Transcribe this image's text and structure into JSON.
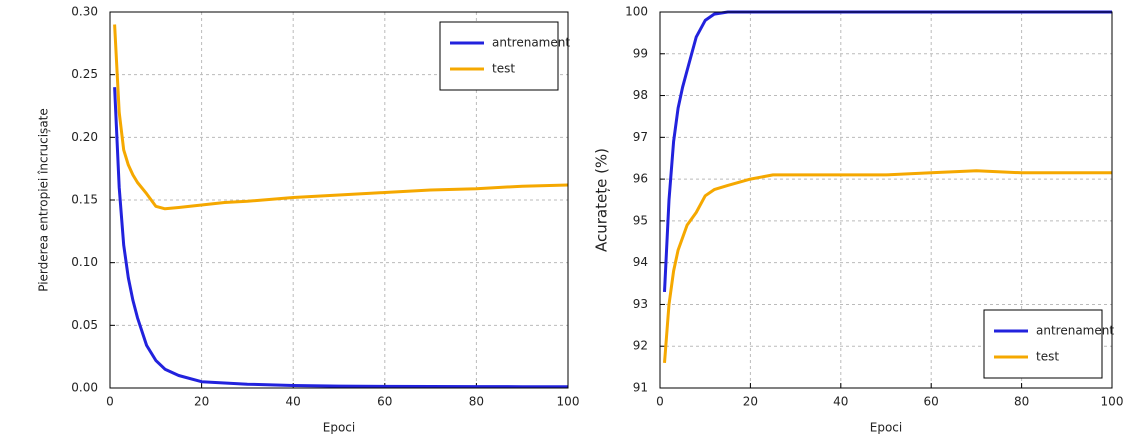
{
  "chart_data": [
    {
      "type": "line",
      "x_label": "Epoci",
      "y_label": "Pierderea entropiei încrucișate",
      "x": [
        1,
        2,
        3,
        4,
        5,
        6,
        8,
        10,
        12,
        15,
        20,
        25,
        30,
        40,
        50,
        60,
        70,
        80,
        90,
        100
      ],
      "series": [
        {
          "name": "antrenament",
          "color": "#2222dd",
          "values": [
            0.24,
            0.16,
            0.114,
            0.088,
            0.07,
            0.056,
            0.034,
            0.022,
            0.015,
            0.01,
            0.005,
            0.004,
            0.003,
            0.002,
            0.0015,
            0.0013,
            0.0012,
            0.0011,
            0.001,
            0.001
          ]
        },
        {
          "name": "test",
          "color": "#f5a800",
          "values": [
            0.29,
            0.22,
            0.19,
            0.178,
            0.17,
            0.164,
            0.155,
            0.145,
            0.143,
            0.144,
            0.146,
            0.148,
            0.149,
            0.152,
            0.154,
            0.156,
            0.158,
            0.159,
            0.161,
            0.162
          ]
        }
      ],
      "xlim": [
        0,
        100
      ],
      "xticks": [
        0,
        20,
        40,
        60,
        80,
        100
      ],
      "ylim": [
        0,
        0.3
      ],
      "yticks": [
        {
          "value": 0,
          "label": "0.00"
        },
        0.05,
        {
          "value": 0.1,
          "label": "0.10"
        },
        0.15,
        {
          "value": 0.2,
          "label": "0.20"
        },
        0.25,
        {
          "value": 0.3,
          "label": "0.30"
        }
      ],
      "grid": true,
      "legend": "upper right"
    },
    {
      "type": "line",
      "x_label": "Epoci",
      "y_label": "Acuratețe (%)",
      "x": [
        1,
        2,
        3,
        4,
        5,
        6,
        8,
        10,
        12,
        15,
        20,
        25,
        30,
        40,
        50,
        60,
        70,
        80,
        90,
        100
      ],
      "series": [
        {
          "name": "antrenament",
          "color": "#2222dd",
          "values": [
            93.3,
            95.5,
            96.9,
            97.7,
            98.2,
            98.6,
            99.4,
            99.8,
            99.95,
            100,
            100,
            100,
            100,
            100,
            100,
            100,
            100,
            100,
            100,
            100
          ]
        },
        {
          "name": "test",
          "color": "#f5a800",
          "values": [
            91.6,
            93.0,
            93.8,
            94.3,
            94.6,
            94.9,
            95.2,
            95.6,
            95.75,
            95.85,
            96.0,
            96.1,
            96.1,
            96.1,
            96.1,
            96.15,
            96.2,
            96.15,
            96.15,
            96.15
          ]
        }
      ],
      "xlim": [
        0,
        100
      ],
      "xticks": [
        0,
        20,
        40,
        60,
        80,
        100
      ],
      "ylim": [
        91,
        100
      ],
      "yticks": [
        91,
        92,
        93,
        94,
        95,
        96,
        97,
        98,
        99,
        100
      ],
      "grid": true,
      "legend": "lower right"
    }
  ]
}
